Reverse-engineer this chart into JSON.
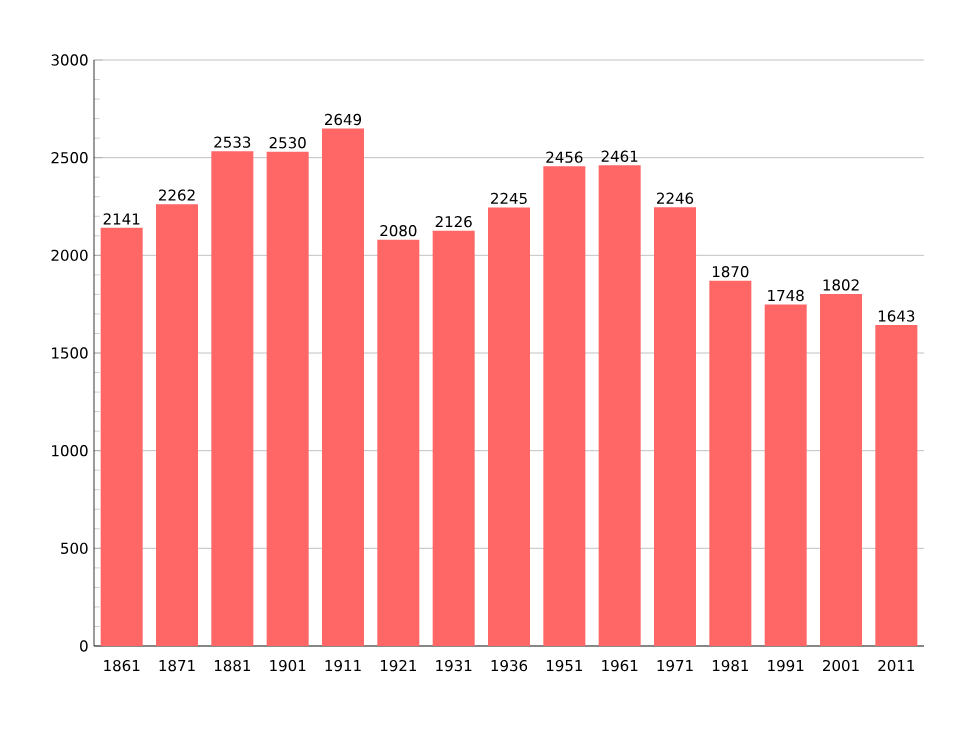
{
  "chart_data": {
    "type": "bar",
    "categories": [
      "1861",
      "1871",
      "1881",
      "1901",
      "1911",
      "1921",
      "1931",
      "1936",
      "1951",
      "1961",
      "1971",
      "1981",
      "1991",
      "2001",
      "2011"
    ],
    "values": [
      2141,
      2262,
      2533,
      2530,
      2649,
      2080,
      2126,
      2245,
      2456,
      2461,
      2246,
      1870,
      1748,
      1802,
      1643
    ],
    "color": "#ff6666",
    "ylim": [
      0,
      3000
    ],
    "yticks": [
      0,
      500,
      1000,
      1500,
      2000,
      2500,
      3000
    ],
    "grid": "y",
    "data_labels": true
  }
}
